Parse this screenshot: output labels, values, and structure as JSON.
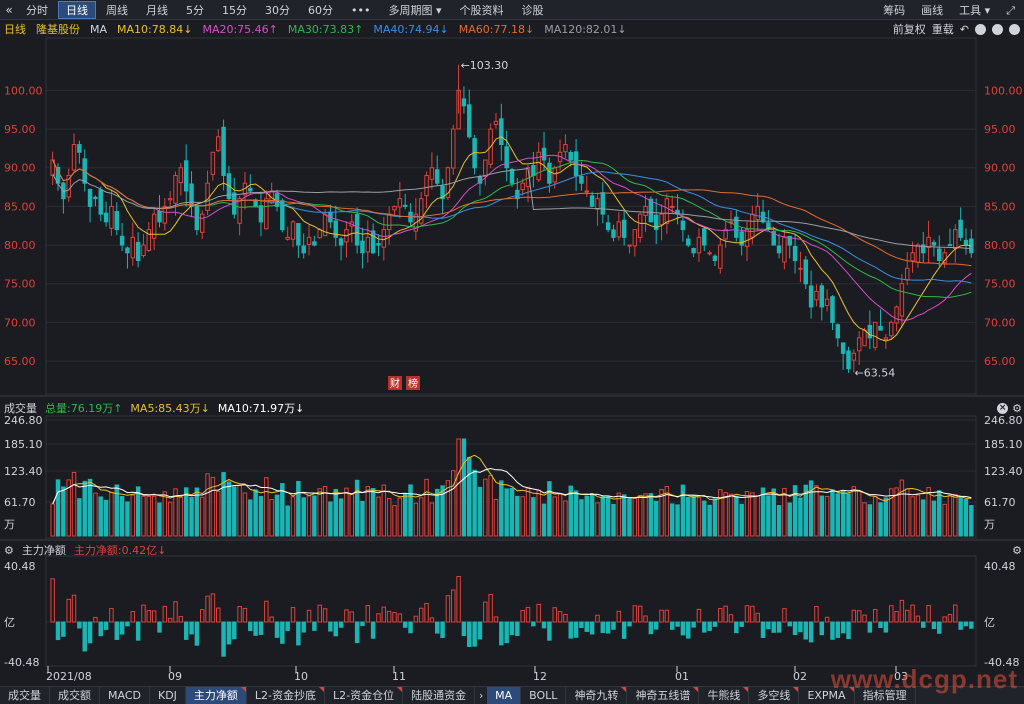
{
  "toolbar": {
    "back": "«",
    "items": [
      "分时",
      "日线",
      "周线",
      "月线",
      "5分",
      "15分",
      "30分",
      "60分",
      "•••",
      "多周期图 ▾",
      "个股资料",
      "诊股"
    ],
    "active_index": 1,
    "right": [
      "筹码",
      "画线",
      "工具 ▾",
      "⤢"
    ]
  },
  "info": {
    "period": "日线",
    "stock": "隆基股份",
    "ma_label": "MA",
    "mas": [
      {
        "text": "MA10:78.84↓",
        "color": "#e8c02a"
      },
      {
        "text": "MA20:75.46↑",
        "color": "#d64fc8"
      },
      {
        "text": "MA30:73.83↑",
        "color": "#32b84a"
      },
      {
        "text": "MA40:74.94↓",
        "color": "#3b8ee8"
      },
      {
        "text": "MA60:77.18↓",
        "color": "#e56a2f"
      },
      {
        "text": "MA120:82.01↓",
        "color": "#9a9ea6"
      }
    ],
    "right": [
      "前复权",
      "重载"
    ]
  },
  "price_axis": [
    "100.00",
    "95.00",
    "90.00",
    "85.00",
    "80.00",
    "75.00",
    "70.00",
    "65.00"
  ],
  "annotations": {
    "high": "←103.30",
    "low": "←63.54",
    "fin": "财",
    "report": "榜"
  },
  "volume": {
    "title": "成交量",
    "total": "总量:76.19万↑",
    "ma5": "MA5:85.43万↓",
    "ma10": "MA10:71.97万↓",
    "axis": [
      "246.80",
      "185.10",
      "123.40",
      "61.70",
      "万"
    ]
  },
  "flow": {
    "title": "主力净额",
    "value": "主力净额:0.42亿↓",
    "axis": [
      "40.48",
      "亿",
      "-40.48"
    ]
  },
  "x_axis": [
    "2021/08",
    "09",
    "10",
    "11",
    "12",
    "01",
    "02",
    "03"
  ],
  "bottom_tabs": [
    "成交量",
    "成交额",
    "MACD",
    "KDJ",
    "主力净额",
    "L2-资金抄底",
    "L2-资金仓位",
    "陆股通资金"
  ],
  "bottom_tabs_active": 4,
  "bottom_tabs2": [
    "MA",
    "BOLL",
    "神奇九转",
    "神奇五线谱",
    "牛熊线",
    "多空线",
    "EXPMA",
    "指标管理"
  ],
  "bottom_tabs2_active": 0,
  "watermark": "www.dcgp.net",
  "colors": {
    "up": "#e0413a",
    "down": "#1bb5b5",
    "bg": "#1a1c21",
    "grid": "#2a2d33"
  },
  "chart_data": {
    "type": "candlestick",
    "ylim": [
      61,
      106
    ],
    "closes": [
      91,
      88,
      86,
      89,
      93,
      92,
      88,
      85,
      86,
      84,
      83,
      85,
      82,
      80,
      79,
      81,
      78,
      80,
      82,
      84,
      83,
      85,
      86,
      89,
      90,
      87,
      85,
      82,
      84,
      88,
      92,
      94,
      89,
      86,
      84,
      86,
      88,
      87,
      85,
      83,
      86,
      87,
      85,
      82,
      81,
      83,
      80,
      79,
      81,
      80,
      82,
      84,
      83,
      81,
      80,
      82,
      83,
      80,
      79,
      81,
      79,
      80,
      82,
      84,
      85,
      86,
      85,
      83,
      84,
      86,
      89,
      90,
      88,
      86,
      90,
      95,
      100,
      98,
      94,
      90,
      88,
      91,
      95,
      96,
      93,
      90,
      88,
      86,
      88,
      90,
      89,
      92,
      91,
      88,
      90,
      92,
      93,
      91,
      89,
      88,
      87,
      85,
      86,
      84,
      82,
      81,
      83,
      81,
      80,
      82,
      84,
      85,
      83,
      82,
      84,
      86,
      85,
      84,
      82,
      80,
      79,
      81,
      80,
      79,
      78,
      80,
      82,
      83,
      81,
      80,
      82,
      84,
      85,
      83,
      82,
      80,
      79,
      81,
      80,
      78,
      77,
      75,
      72,
      74,
      72,
      73,
      70,
      68,
      66,
      64,
      66,
      68,
      69,
      68,
      70,
      69,
      68,
      70,
      72,
      75,
      77,
      79,
      80,
      79,
      81,
      80,
      78,
      79,
      80,
      82,
      81,
      80,
      79
    ]
  }
}
